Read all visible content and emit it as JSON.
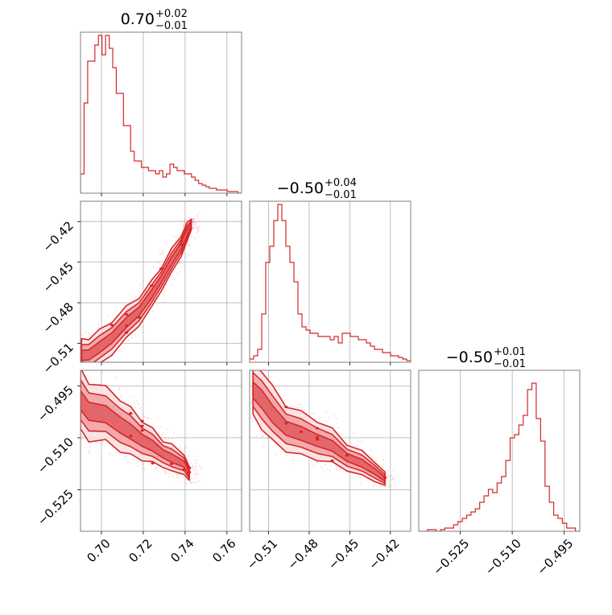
{
  "chart_data": {
    "type": "corner",
    "color": "#d62728",
    "fill_colors": [
      "#f9dfe0",
      "#f0a0a3",
      "#e05a5e"
    ],
    "grid": true,
    "parameters": [
      {
        "title": {
          "main": "0.70",
          "sup": "+0.02",
          "sub": "−0.01"
        },
        "range": [
          0.69,
          0.767
        ],
        "ticks": [
          {
            "v": 0.7,
            "label": "0.70"
          },
          {
            "v": 0.72,
            "label": "0.72"
          },
          {
            "v": 0.74,
            "label": "0.74"
          },
          {
            "v": 0.76,
            "label": "0.76"
          }
        ],
        "hist": [
          0.12,
          0.56,
          0.82,
          0.82,
          0.92,
          0.98,
          0.86,
          0.98,
          0.9,
          0.78,
          0.62,
          0.62,
          0.42,
          0.42,
          0.26,
          0.2,
          0.2,
          0.16,
          0.16,
          0.14,
          0.14,
          0.12,
          0.14,
          0.1,
          0.12,
          0.18,
          0.16,
          0.14,
          0.14,
          0.12,
          0.12,
          0.1,
          0.08,
          0.06,
          0.05,
          0.04,
          0.03,
          0.03,
          0.02,
          0.02,
          0.02,
          0.01,
          0.01,
          0.01,
          0.0
        ]
      },
      {
        "title": {
          "main": "−0.50",
          "sup": "+0.04",
          "sub": "−0.01"
        },
        "range": [
          -0.524,
          -0.405
        ],
        "ticks": [
          {
            "v": -0.51,
            "label": "−0.51"
          },
          {
            "v": -0.48,
            "label": "−0.48"
          },
          {
            "v": -0.45,
            "label": "−0.45"
          },
          {
            "v": -0.42,
            "label": "−0.42"
          }
        ],
        "hist": [
          0.02,
          0.04,
          0.08,
          0.3,
          0.62,
          0.72,
          0.88,
          0.98,
          0.88,
          0.72,
          0.62,
          0.5,
          0.3,
          0.22,
          0.2,
          0.18,
          0.18,
          0.16,
          0.16,
          0.16,
          0.14,
          0.16,
          0.12,
          0.18,
          0.18,
          0.16,
          0.16,
          0.14,
          0.14,
          0.12,
          0.1,
          0.08,
          0.08,
          0.06,
          0.06,
          0.04,
          0.04,
          0.03,
          0.02,
          0.01
        ]
      },
      {
        "title": {
          "main": "−0.50",
          "sup": "+0.01",
          "sub": "−0.01"
        },
        "range": [
          -0.537,
          -0.4905
        ],
        "ticks": [
          {
            "v": -0.525,
            "label": "−0.525"
          },
          {
            "v": -0.51,
            "label": "−0.510"
          },
          {
            "v": -0.495,
            "label": "−0.495"
          }
        ],
        "hist": [
          0.0,
          0.0,
          0.01,
          0.01,
          0.0,
          0.01,
          0.02,
          0.02,
          0.04,
          0.06,
          0.08,
          0.1,
          0.12,
          0.14,
          0.18,
          0.22,
          0.26,
          0.24,
          0.3,
          0.34,
          0.44,
          0.58,
          0.6,
          0.66,
          0.72,
          0.88,
          0.92,
          0.7,
          0.56,
          0.28,
          0.18,
          0.1,
          0.08,
          0.05,
          0.02,
          0.02,
          0.0
        ]
      }
    ],
    "pairs": [
      {
        "row": 1,
        "col": 0,
        "core": [
          [
            0.6905,
            -0.5195
          ],
          [
            0.694,
            -0.518
          ],
          [
            0.699,
            -0.5135
          ],
          [
            0.705,
            -0.5055
          ],
          [
            0.712,
            -0.495
          ],
          [
            0.718,
            -0.486
          ],
          [
            0.724,
            -0.474
          ],
          [
            0.7285,
            -0.4625
          ],
          [
            0.7335,
            -0.4495
          ],
          [
            0.738,
            -0.438
          ],
          [
            0.741,
            -0.428
          ],
          [
            0.743,
            -0.4215
          ]
        ],
        "widths": [
          0.006,
          0.0065,
          0.0065,
          0.0065,
          0.006,
          0.0055,
          0.005,
          0.0045,
          0.0045,
          0.004,
          0.0035,
          0.002
        ]
      },
      {
        "row": 2,
        "col": 0,
        "bands": [
          [
            [
              0.69,
              -0.4995
            ],
            [
              0.694,
              -0.502
            ],
            [
              0.702,
              -0.5035
            ],
            [
              0.709,
              -0.506
            ],
            [
              0.714,
              -0.5085
            ],
            [
              0.7195,
              -0.5105
            ],
            [
              0.7245,
              -0.5125
            ],
            [
              0.7295,
              -0.5145
            ],
            [
              0.7335,
              -0.516
            ],
            [
              0.7395,
              -0.5175
            ],
            [
              0.742,
              -0.5205
            ]
          ],
          [
            0.0045,
            0.0045,
            0.004,
            0.004,
            0.0035,
            0.003,
            0.0025,
            0.002,
            0.002,
            0.0015,
            0.001
          ]
        ]
      },
      {
        "row": 2,
        "col": 1,
        "bands": [
          [
            [
              -0.5215,
              -0.4965
            ],
            [
              -0.515,
              -0.4985
            ],
            [
              -0.507,
              -0.5035
            ],
            [
              -0.497,
              -0.507
            ],
            [
              -0.486,
              -0.509
            ],
            [
              -0.474,
              -0.5105
            ],
            [
              -0.463,
              -0.5125
            ],
            [
              -0.452,
              -0.5155
            ],
            [
              -0.441,
              -0.5175
            ],
            [
              -0.432,
              -0.5195
            ],
            [
              -0.424,
              -0.522
            ]
          ],
          [
            0.0038,
            0.0045,
            0.004,
            0.0035,
            0.0032,
            0.003,
            0.0025,
            0.002,
            0.0018,
            0.0015,
            0.001
          ]
        ]
      }
    ]
  }
}
